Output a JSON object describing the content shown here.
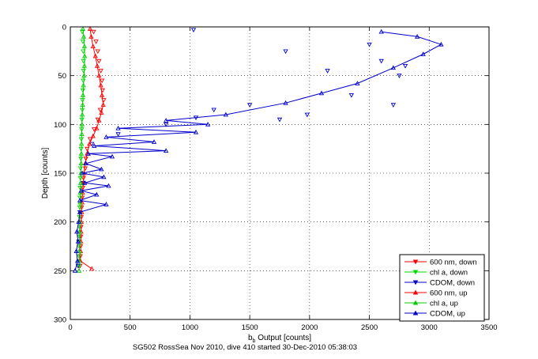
{
  "chart_data": {
    "type": "scatter",
    "xlabel_main": "b",
    "xlabel_sub": "b",
    "xlabel_rest": " Output [counts]",
    "ylabel": "Depth [counts]",
    "caption": "SG502 RossSea Nov 2010, dive 410 started 30-Dec-2010 05:38:03",
    "xlim": [
      0,
      3500
    ],
    "ylim": [
      0,
      300
    ],
    "y_reversed": true,
    "grid": true,
    "legend_position": "bottom-right",
    "xticks": [
      "0",
      "500",
      "1000",
      "1500",
      "2000",
      "2500",
      "3000",
      "3500"
    ],
    "yticks": [
      "0",
      "50",
      "100",
      "150",
      "200",
      "250",
      "300"
    ],
    "series": [
      {
        "name": "600 nm, down",
        "color": "#ff0000",
        "marker": "tri-down",
        "line": false,
        "points": [
          [
            195,
            5
          ],
          [
            215,
            15
          ],
          [
            230,
            25
          ],
          [
            240,
            35
          ],
          [
            255,
            45
          ],
          [
            265,
            55
          ],
          [
            270,
            65
          ],
          [
            280,
            75
          ],
          [
            250,
            85
          ],
          [
            230,
            95
          ],
          [
            200,
            105
          ],
          [
            165,
            115
          ],
          [
            140,
            125
          ],
          [
            130,
            135
          ],
          [
            125,
            145
          ],
          [
            110,
            155
          ],
          [
            105,
            165
          ],
          [
            100,
            175
          ],
          [
            95,
            185
          ],
          [
            92,
            195
          ],
          [
            90,
            205
          ],
          [
            88,
            215
          ],
          [
            86,
            225
          ],
          [
            84,
            235
          ],
          [
            82,
            245
          ]
        ]
      },
      {
        "name": "chl a, down",
        "color": "#00dd00",
        "marker": "tri-down",
        "line": false,
        "points": [
          [
            100,
            5
          ],
          [
            105,
            15
          ],
          [
            108,
            25
          ],
          [
            110,
            35
          ],
          [
            110,
            45
          ],
          [
            108,
            55
          ],
          [
            105,
            65
          ],
          [
            102,
            75
          ],
          [
            100,
            85
          ],
          [
            97,
            95
          ],
          [
            95,
            105
          ],
          [
            92,
            115
          ],
          [
            90,
            125
          ],
          [
            88,
            135
          ],
          [
            85,
            145
          ],
          [
            84,
            155
          ],
          [
            82,
            165
          ],
          [
            80,
            175
          ],
          [
            78,
            185
          ],
          [
            77,
            195
          ],
          [
            76,
            205
          ],
          [
            75,
            215
          ],
          [
            74,
            225
          ],
          [
            73,
            235
          ],
          [
            72,
            245
          ]
        ]
      },
      {
        "name": "CDOM, down",
        "color": "#0000cc",
        "marker": "tri-down",
        "line": false,
        "points": [
          [
            1030,
            3
          ],
          [
            1800,
            25
          ],
          [
            2150,
            45
          ],
          [
            2500,
            18
          ],
          [
            2800,
            40
          ],
          [
            2600,
            35
          ],
          [
            2750,
            50
          ],
          [
            2350,
            70
          ],
          [
            2700,
            80
          ],
          [
            1980,
            90
          ],
          [
            1750,
            95
          ],
          [
            1500,
            80
          ],
          [
            1200,
            85
          ],
          [
            1050,
            93
          ],
          [
            800,
            100
          ],
          [
            400,
            110
          ],
          [
            180,
            120
          ],
          [
            110,
            160
          ],
          [
            80,
            190
          ],
          [
            70,
            220
          ],
          [
            65,
            245
          ]
        ]
      },
      {
        "name": "600 nm, up",
        "color": "#ff0000",
        "marker": "tri-up",
        "line": true,
        "points": [
          [
            165,
            2
          ],
          [
            175,
            10
          ],
          [
            190,
            20
          ],
          [
            210,
            30
          ],
          [
            225,
            40
          ],
          [
            240,
            50
          ],
          [
            255,
            60
          ],
          [
            265,
            70
          ],
          [
            275,
            80
          ],
          [
            260,
            88
          ],
          [
            240,
            96
          ],
          [
            220,
            104
          ],
          [
            190,
            112
          ],
          [
            160,
            120
          ],
          [
            140,
            130
          ],
          [
            125,
            140
          ],
          [
            115,
            150
          ],
          [
            108,
            160
          ],
          [
            102,
            170
          ],
          [
            98,
            180
          ],
          [
            95,
            190
          ],
          [
            92,
            200
          ],
          [
            90,
            210
          ],
          [
            88,
            220
          ],
          [
            86,
            230
          ],
          [
            84,
            240
          ],
          [
            180,
            248
          ]
        ]
      },
      {
        "name": "chl a, up",
        "color": "#00cc00",
        "marker": "tri-up",
        "line": true,
        "points": [
          [
            105,
            2
          ],
          [
            112,
            10
          ],
          [
            118,
            20
          ],
          [
            120,
            30
          ],
          [
            118,
            40
          ],
          [
            115,
            50
          ],
          [
            110,
            60
          ],
          [
            106,
            70
          ],
          [
            103,
            80
          ],
          [
            100,
            90
          ],
          [
            98,
            100
          ],
          [
            96,
            110
          ],
          [
            94,
            120
          ],
          [
            92,
            130
          ],
          [
            90,
            140
          ],
          [
            88,
            150
          ],
          [
            86,
            160
          ],
          [
            84,
            170
          ],
          [
            82,
            180
          ],
          [
            80,
            190
          ],
          [
            78,
            200
          ],
          [
            77,
            210
          ],
          [
            76,
            220
          ],
          [
            75,
            230
          ],
          [
            74,
            240
          ],
          [
            73,
            250
          ]
        ]
      },
      {
        "name": "CDOM, up",
        "color": "#0000cc",
        "marker": "tri-up",
        "line": true,
        "points": [
          [
            40,
            250
          ],
          [
            60,
            240
          ],
          [
            50,
            230
          ],
          [
            65,
            220
          ],
          [
            55,
            210
          ],
          [
            70,
            200
          ],
          [
            80,
            190
          ],
          [
            300,
            182
          ],
          [
            80,
            178
          ],
          [
            220,
            172
          ],
          [
            90,
            168
          ],
          [
            320,
            163
          ],
          [
            120,
            160
          ],
          [
            280,
            154
          ],
          [
            100,
            150
          ],
          [
            260,
            146
          ],
          [
            130,
            140
          ],
          [
            350,
            133
          ],
          [
            150,
            130
          ],
          [
            800,
            127
          ],
          [
            200,
            122
          ],
          [
            700,
            118
          ],
          [
            300,
            113
          ],
          [
            1050,
            108
          ],
          [
            400,
            104
          ],
          [
            1150,
            100
          ],
          [
            800,
            96
          ],
          [
            1300,
            90
          ],
          [
            1800,
            78
          ],
          [
            2100,
            68
          ],
          [
            2400,
            58
          ],
          [
            2700,
            42
          ],
          [
            2950,
            28
          ],
          [
            3100,
            18
          ],
          [
            2900,
            10
          ],
          [
            2600,
            5
          ]
        ]
      }
    ]
  }
}
